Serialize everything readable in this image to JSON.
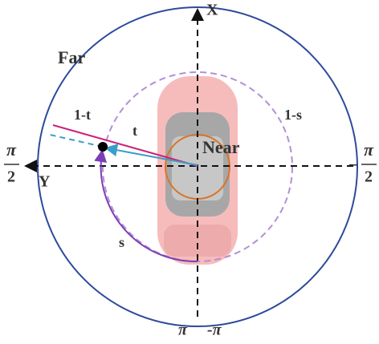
{
  "labels": {
    "x_axis": "X",
    "y_axis": "Y",
    "far": "Far",
    "near": "Near",
    "one_minus_t": "1-t",
    "t": "t",
    "one_minus_s": "1-s",
    "s": "s",
    "left_angle": {
      "numerator": "π",
      "denominator": "2"
    },
    "right_angle": {
      "sign": "−",
      "numerator": "π",
      "denominator": "2"
    },
    "bottom_left": "π",
    "bottom_right": "-π"
  }
}
